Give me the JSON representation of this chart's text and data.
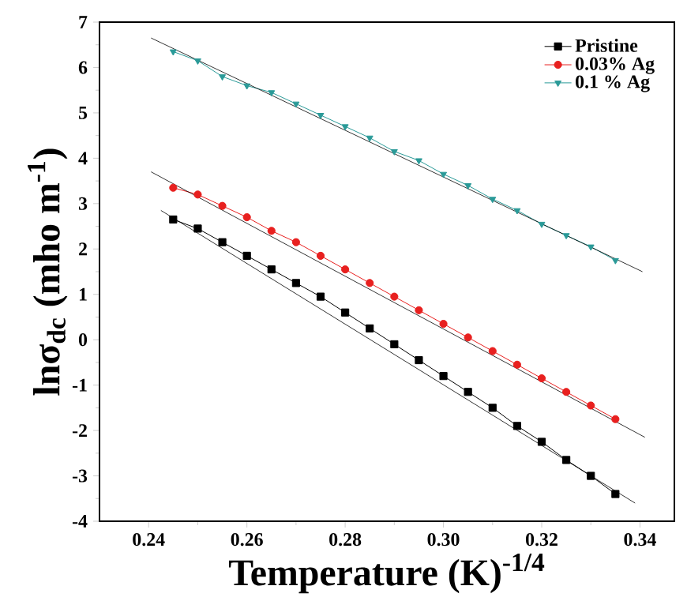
{
  "chart_data": {
    "type": "line",
    "xlabel": "Temperature (K)$^{-1/4}$",
    "ylabel": "lnσ$_{dc}$ (mho m$^{-1}$)",
    "xlim": [
      0.23,
      0.347
    ],
    "xticks": [
      {
        "value": 0.24,
        "label": "0.24"
      },
      {
        "value": 0.26,
        "label": "0.26"
      },
      {
        "value": 0.28,
        "label": "0.28"
      },
      {
        "value": 0.3,
        "label": "0.30"
      },
      {
        "value": 0.32,
        "label": "0.32"
      },
      {
        "value": 0.34,
        "label": "0.34"
      }
    ],
    "ylim": [
      -4,
      7
    ],
    "yticks": [
      -4,
      -3,
      -2,
      -1,
      0,
      1,
      2,
      3,
      4,
      5,
      6,
      7
    ],
    "legend": "top right",
    "grid": false,
    "line_style": "solid",
    "series": [
      {
        "name": "Pristine",
        "color": "#000000",
        "marker": "square",
        "x": [
          0.245,
          0.25,
          0.255,
          0.26,
          0.265,
          0.27,
          0.275,
          0.28,
          0.285,
          0.29,
          0.295,
          0.3,
          0.305,
          0.31,
          0.315,
          0.32,
          0.325,
          0.33,
          0.335
        ],
        "values": [
          2.65,
          2.45,
          2.15,
          1.85,
          1.55,
          1.25,
          0.95,
          0.6,
          0.25,
          -0.1,
          -0.45,
          -0.8,
          -1.15,
          -1.5,
          -1.9,
          -2.25,
          -2.65,
          -3.0,
          -3.4
        ]
      },
      {
        "name": "0.03% Ag",
        "color": "#e8201f",
        "marker": "circle",
        "x": [
          0.245,
          0.25,
          0.255,
          0.26,
          0.265,
          0.27,
          0.275,
          0.28,
          0.285,
          0.29,
          0.295,
          0.3,
          0.305,
          0.31,
          0.315,
          0.32,
          0.325,
          0.33,
          0.335
        ],
        "values": [
          3.35,
          3.2,
          2.95,
          2.7,
          2.4,
          2.15,
          1.85,
          1.55,
          1.25,
          0.95,
          0.65,
          0.35,
          0.05,
          -0.25,
          -0.55,
          -0.85,
          -1.15,
          -1.45,
          -1.75
        ]
      },
      {
        "name": "0.1 % Ag",
        "color": "#2a9a98",
        "marker": "triangle",
        "x": [
          0.245,
          0.25,
          0.255,
          0.26,
          0.265,
          0.27,
          0.275,
          0.28,
          0.285,
          0.29,
          0.295,
          0.3,
          0.305,
          0.31,
          0.315,
          0.32,
          0.325,
          0.33,
          0.335
        ],
        "values": [
          6.35,
          6.15,
          5.8,
          5.6,
          5.45,
          5.2,
          4.95,
          4.7,
          4.45,
          4.15,
          3.95,
          3.65,
          3.4,
          3.1,
          2.85,
          2.55,
          2.3,
          2.05,
          1.75
        ]
      },
      {
        "color": "#000000",
        "marker": "none",
        "x": [
          0.2405,
          0.3405
        ],
        "values": [
          6.65,
          1.5
        ]
      },
      {
        "color": "#000000",
        "marker": "none",
        "x": [
          0.2405,
          0.341
        ],
        "values": [
          3.7,
          -2.15
        ]
      },
      {
        "color": "#000000",
        "marker": "none",
        "x": [
          0.2425,
          0.339
        ],
        "values": [
          2.85,
          -3.6
        ]
      }
    ]
  }
}
